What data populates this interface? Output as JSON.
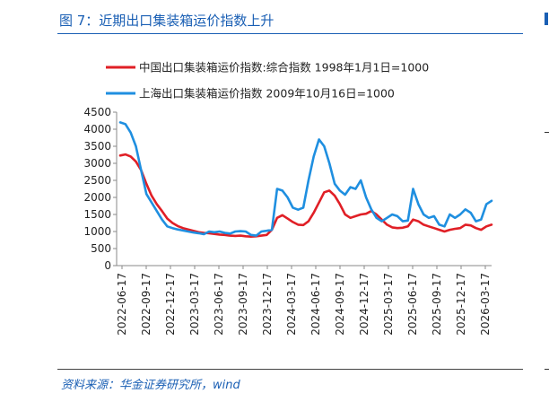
{
  "figure": {
    "title": "图 7：近期出口集装箱运价指数上升",
    "source": "资料来源：华金证券研究所，wind"
  },
  "chart_data": {
    "type": "line",
    "x_tick_labels": [
      "2022-06-17",
      "2022-09-17",
      "2022-12-17",
      "2023-03-17",
      "2023-06-17",
      "2023-09-17",
      "2023-12-17",
      "2024-03-17",
      "2024-06-17",
      "2024-09-17",
      "2024-12-17",
      "2025-03-17",
      "2025-06-17",
      "2025-09-17",
      "2025-12-17",
      "2026-03-17"
    ],
    "y_ticks": [
      0,
      500,
      1000,
      1500,
      2000,
      2500,
      3000,
      3500,
      4000,
      4500
    ],
    "ylim": [
      0,
      4500
    ],
    "grid": false,
    "legend_position": "top",
    "series": [
      {
        "name": "中国出口集装箱运价指数:综合指数 1998年1月1日=1000",
        "color": "#e01f26",
        "values": [
          3230,
          3260,
          3200,
          3050,
          2800,
          2400,
          2050,
          1800,
          1600,
          1380,
          1250,
          1160,
          1100,
          1060,
          1020,
          980,
          960,
          950,
          930,
          910,
          900,
          880,
          870,
          880,
          860,
          850,
          860,
          880,
          900,
          1050,
          1400,
          1480,
          1380,
          1280,
          1200,
          1190,
          1300,
          1550,
          1850,
          2150,
          2200,
          2050,
          1800,
          1500,
          1400,
          1450,
          1500,
          1520,
          1600,
          1500,
          1350,
          1200,
          1120,
          1100,
          1110,
          1150,
          1350,
          1300,
          1200,
          1150,
          1100,
          1050,
          1000,
          1050,
          1080,
          1100,
          1200,
          1180,
          1100,
          1050,
          1150,
          1200
        ]
      },
      {
        "name": "上海出口集装箱运价指数 2009年10月16日=1000",
        "color": "#1f8fe0",
        "values": [
          4200,
          4150,
          3900,
          3500,
          2800,
          2100,
          1850,
          1600,
          1350,
          1150,
          1100,
          1060,
          1030,
          1000,
          970,
          950,
          920,
          1000,
          980,
          1000,
          960,
          940,
          1000,
          1010,
          1000,
          900,
          880,
          1000,
          1020,
          1050,
          2250,
          2200,
          2000,
          1700,
          1640,
          1700,
          2500,
          3200,
          3700,
          3500,
          3000,
          2400,
          2200,
          2080,
          2300,
          2250,
          2500,
          2000,
          1650,
          1400,
          1300,
          1400,
          1500,
          1450,
          1300,
          1320,
          2250,
          1800,
          1500,
          1400,
          1450,
          1200,
          1150,
          1500,
          1400,
          1500,
          1650,
          1550,
          1300,
          1350,
          1800,
          1900
        ]
      }
    ]
  }
}
